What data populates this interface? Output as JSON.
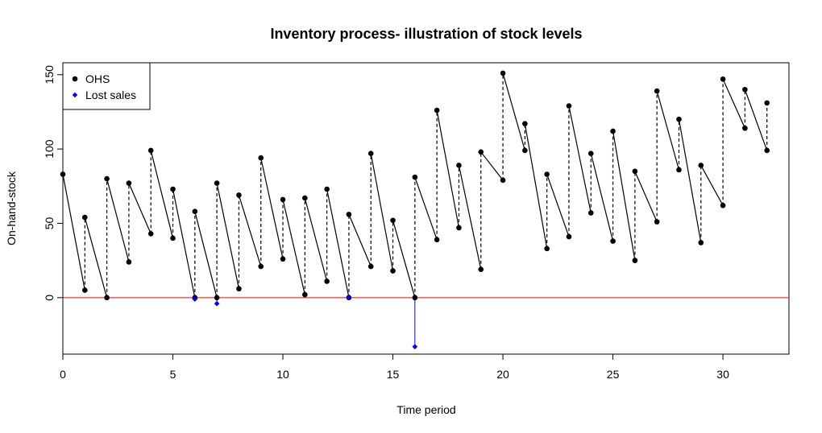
{
  "chart_data": {
    "type": "line",
    "title": "Inventory process- illustration of stock levels",
    "xlabel": "Time period",
    "ylabel": "On-hand-stock",
    "xlim": [
      0,
      33
    ],
    "ylim": [
      -38,
      158
    ],
    "x_ticks": [
      0,
      5,
      10,
      15,
      20,
      25,
      30
    ],
    "y_ticks": [
      0,
      50,
      100,
      150
    ],
    "grid": false,
    "legend_position": "top-left",
    "reference_line": {
      "y": 0,
      "color": "#ff0000"
    },
    "colors": {
      "ohs": "#000000",
      "lost_sales": "#0000ff",
      "reference": "#ff0000"
    },
    "series": [
      {
        "name": "OHS",
        "marker": "filled-circle",
        "color": "#000000",
        "x": [
          0,
          1,
          1,
          2,
          2,
          3,
          3,
          4,
          4,
          5,
          5,
          6,
          6,
          7,
          7,
          8,
          8,
          9,
          9,
          10,
          10,
          11,
          11,
          12,
          12,
          13,
          13,
          14,
          14,
          15,
          15,
          16,
          16,
          17,
          17,
          18,
          18,
          19,
          19,
          20,
          20,
          21,
          21,
          22,
          22,
          23,
          23,
          24,
          24,
          25,
          25,
          26,
          26,
          27,
          27,
          28,
          28,
          29,
          29,
          30,
          30,
          31,
          31,
          32,
          32
        ],
        "y": [
          83,
          5,
          54,
          0,
          80,
          24,
          77,
          43,
          99,
          40,
          73,
          0,
          58,
          0,
          77,
          6,
          69,
          21,
          94,
          26,
          66,
          2,
          67,
          11,
          73,
          0,
          56,
          21,
          97,
          18,
          52,
          0,
          81,
          39,
          126,
          47,
          89,
          19,
          98,
          79,
          151,
          99,
          117,
          33,
          83,
          41,
          129,
          57,
          97,
          38,
          112,
          25,
          85,
          51,
          139,
          86,
          120,
          37,
          89,
          62,
          147,
          114,
          140,
          99,
          131
        ]
      },
      {
        "name": "Lost sales",
        "marker": "filled-diamond",
        "color": "#0000ff",
        "x": [
          6,
          7,
          13,
          16
        ],
        "y": [
          -1,
          -4,
          0,
          -33
        ]
      }
    ]
  }
}
